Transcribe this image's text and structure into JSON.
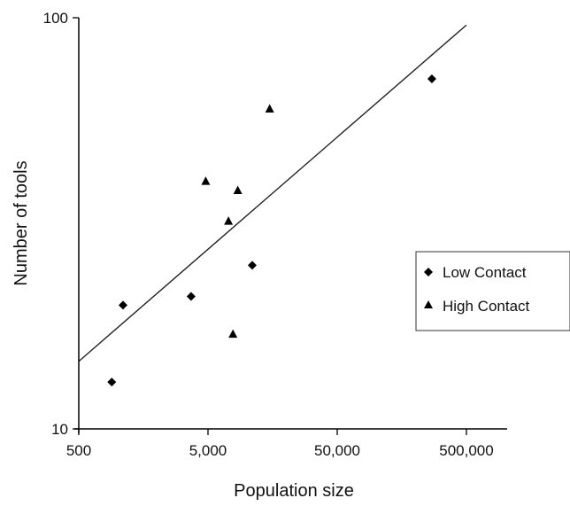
{
  "chart_data": {
    "type": "scatter",
    "xlabel": "Population size",
    "ylabel": "Number of tools",
    "xscale": "log",
    "yscale": "log",
    "xlim": [
      500,
      800000
    ],
    "ylim": [
      10,
      100
    ],
    "x_ticks": [
      500,
      5000,
      50000,
      500000
    ],
    "x_tick_labels": [
      "500",
      "5,000",
      "50,000",
      "500,000"
    ],
    "y_ticks": [
      10,
      100
    ],
    "y_tick_labels": [
      "10",
      "100"
    ],
    "grid": false,
    "legend_position": "right",
    "series": [
      {
        "name": "Low Contact",
        "marker": "diamond",
        "points": [
          {
            "x": 900,
            "y": 13
          },
          {
            "x": 1100,
            "y": 20
          },
          {
            "x": 3700,
            "y": 21
          },
          {
            "x": 11000,
            "y": 25
          },
          {
            "x": 270000,
            "y": 71
          }
        ]
      },
      {
        "name": "High Contact",
        "marker": "triangle",
        "points": [
          {
            "x": 4800,
            "y": 40
          },
          {
            "x": 7200,
            "y": 32
          },
          {
            "x": 7800,
            "y": 17
          },
          {
            "x": 8500,
            "y": 38
          },
          {
            "x": 15000,
            "y": 60
          }
        ]
      }
    ],
    "fit_line": {
      "x": [
        500,
        500000
      ],
      "y": [
        14.6,
        96
      ]
    }
  }
}
